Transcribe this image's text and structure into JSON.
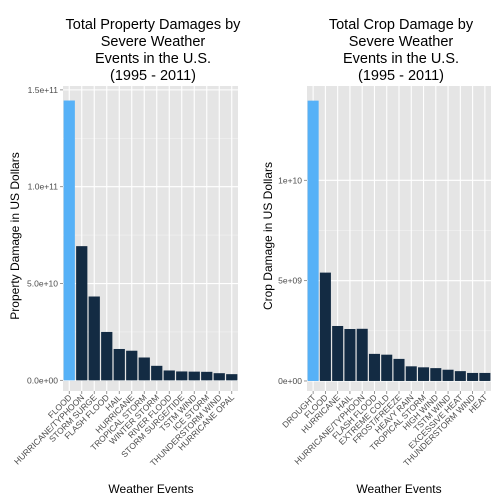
{
  "chart_data": [
    {
      "type": "bar",
      "title": [
        "Total Property Damages by",
        "Severe Weather",
        "Events in the U.S.",
        "(1995 - 2011)"
      ],
      "xlabel": "Weather Events",
      "ylabel": "Property Damage in US Dollars",
      "categories": [
        "FLOOD",
        "HURRICANE/TYPHOON",
        "STORM SURGE",
        "FLASH FLOOD",
        "HAIL",
        "HURRICANE",
        "TROPICAL STORM",
        "WINTER STORM",
        "RIVER FLOOD",
        "STORM SURGE/TIDE",
        "TSTM WIND",
        "ICE STORM",
        "THUNDERSTORM WIND",
        "HURRICANE OPAL"
      ],
      "values": [
        144500000000.0,
        69300000000.0,
        43300000000.0,
        25000000000.0,
        16200000000.0,
        15300000000.0,
        11800000000.0,
        7500000000.0,
        5100000000.0,
        4600000000.0,
        4500000000.0,
        4400000000.0,
        3700000000.0,
        3200000000.0
      ],
      "ylim": [
        -5500000000.0,
        152000000000.0
      ],
      "yticks": [
        0,
        50000000000.0,
        100000000000.0,
        150000000000.0
      ],
      "ytick_labels": [
        "0.0e+00",
        "5.0e+10",
        "1.0e+11",
        "1.5e+11"
      ],
      "highlight_color": "#56B1F7",
      "bar_color": "#132B43",
      "panel_color": "#E5E5E5",
      "grid": true
    },
    {
      "type": "bar",
      "title": [
        "Total Crop Damage by",
        "Severe Weather",
        "Events in the U.S.",
        "(1995 - 2011)"
      ],
      "xlabel": "Weather Events",
      "ylabel": "Crop Damage in US Dollars",
      "categories": [
        "DROUGHT",
        "FLOOD",
        "HURRICANE",
        "HAIL",
        "HURRICANE/TYPHOON",
        "FLASH FLOOD",
        "EXTREME COLD",
        "FROST/FREEZE",
        "HEAVY RAIN",
        "TROPICAL STORM",
        "HIGH WIND",
        "TSTM WIND",
        "EXCESSIVE HEAT",
        "THUNDERSTORM WIND",
        "HEAT"
      ],
      "values": [
        13970000000.0,
        5400000000.0,
        2740000000.0,
        2590000000.0,
        2600000000.0,
        1350000000.0,
        1310000000.0,
        1100000000.0,
        730000000.0,
        680000000.0,
        640000000.0,
        560000000.0,
        490000000.0,
        400000000.0,
        400000000.0
      ],
      "ylim": [
        -500000000.0,
        14700000000.0
      ],
      "yticks": [
        0,
        5000000000.0,
        10000000000.0
      ],
      "ytick_labels": [
        "0e+00",
        "5e+09",
        "1e+10"
      ],
      "highlight_color": "#56B1F7",
      "bar_color": "#132B43",
      "panel_color": "#E5E5E5",
      "grid": true
    }
  ]
}
